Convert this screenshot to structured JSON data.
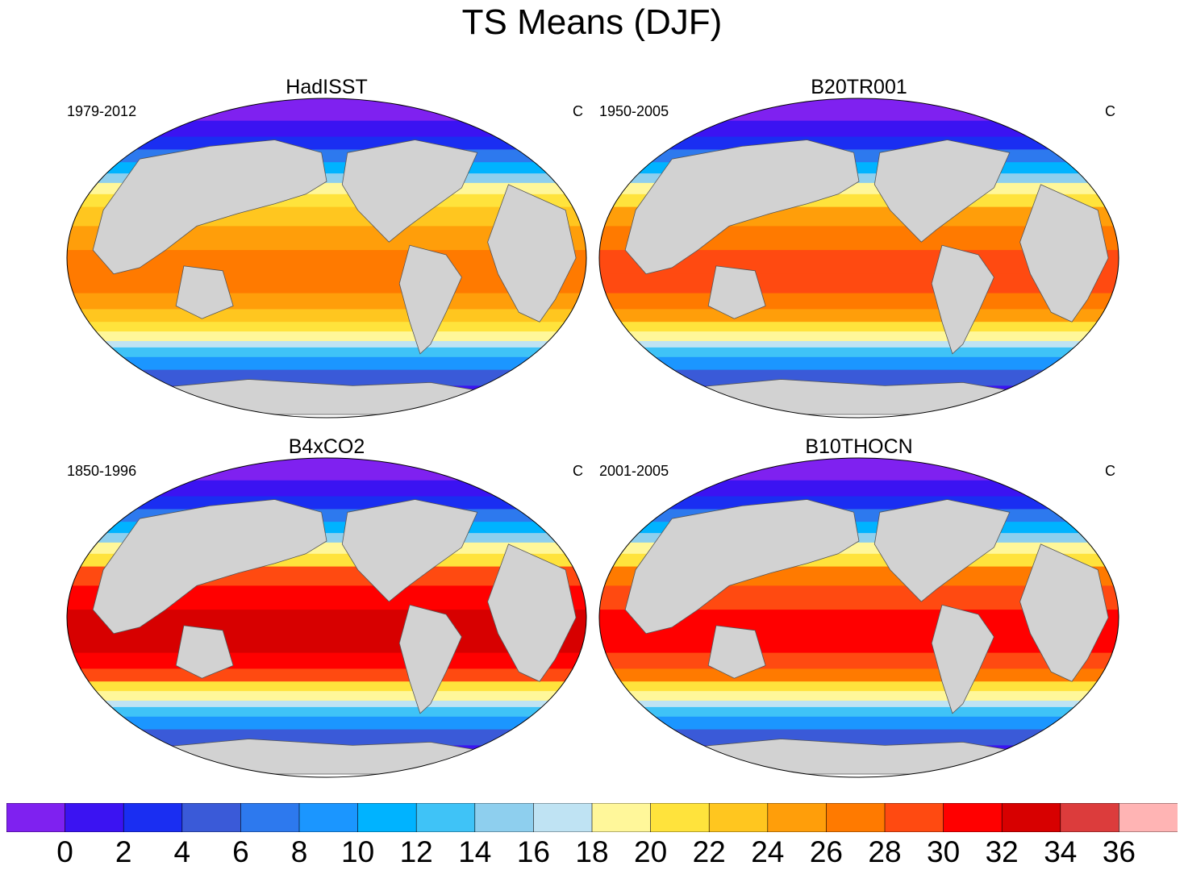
{
  "title": "TS Means (DJF)",
  "unit": "C",
  "panels": [
    {
      "title": "HadISST",
      "period": "1979-2012",
      "unit": "C",
      "peak": 0
    },
    {
      "title": "B20TR001",
      "period": "1950-2005",
      "unit": "C",
      "peak": 1
    },
    {
      "title": "B4xCO2",
      "period": "1850-1996",
      "unit": "C",
      "peak": 3
    },
    {
      "title": "B10THOCN",
      "period": "2001-2005",
      "unit": "C",
      "peak": 2
    }
  ],
  "colorbar": {
    "labels": [
      "0",
      "2",
      "4",
      "6",
      "8",
      "10",
      "12",
      "14",
      "16",
      "18",
      "20",
      "22",
      "24",
      "26",
      "28",
      "30",
      "32",
      "34",
      "36"
    ],
    "colors": [
      "#7f21f0",
      "#3b13f2",
      "#1a2ef2",
      "#3a5ad8",
      "#2d79ee",
      "#1b96ff",
      "#00b3ff",
      "#3fc3f7",
      "#8ecfee",
      "#bfe3f3",
      "#fff79a",
      "#ffe33c",
      "#ffc61f",
      "#ff9e0a",
      "#ff7a00",
      "#ff4a11",
      "#ff0000",
      "#d70000",
      "#dc3c3c",
      "#ffb4b4"
    ]
  }
}
